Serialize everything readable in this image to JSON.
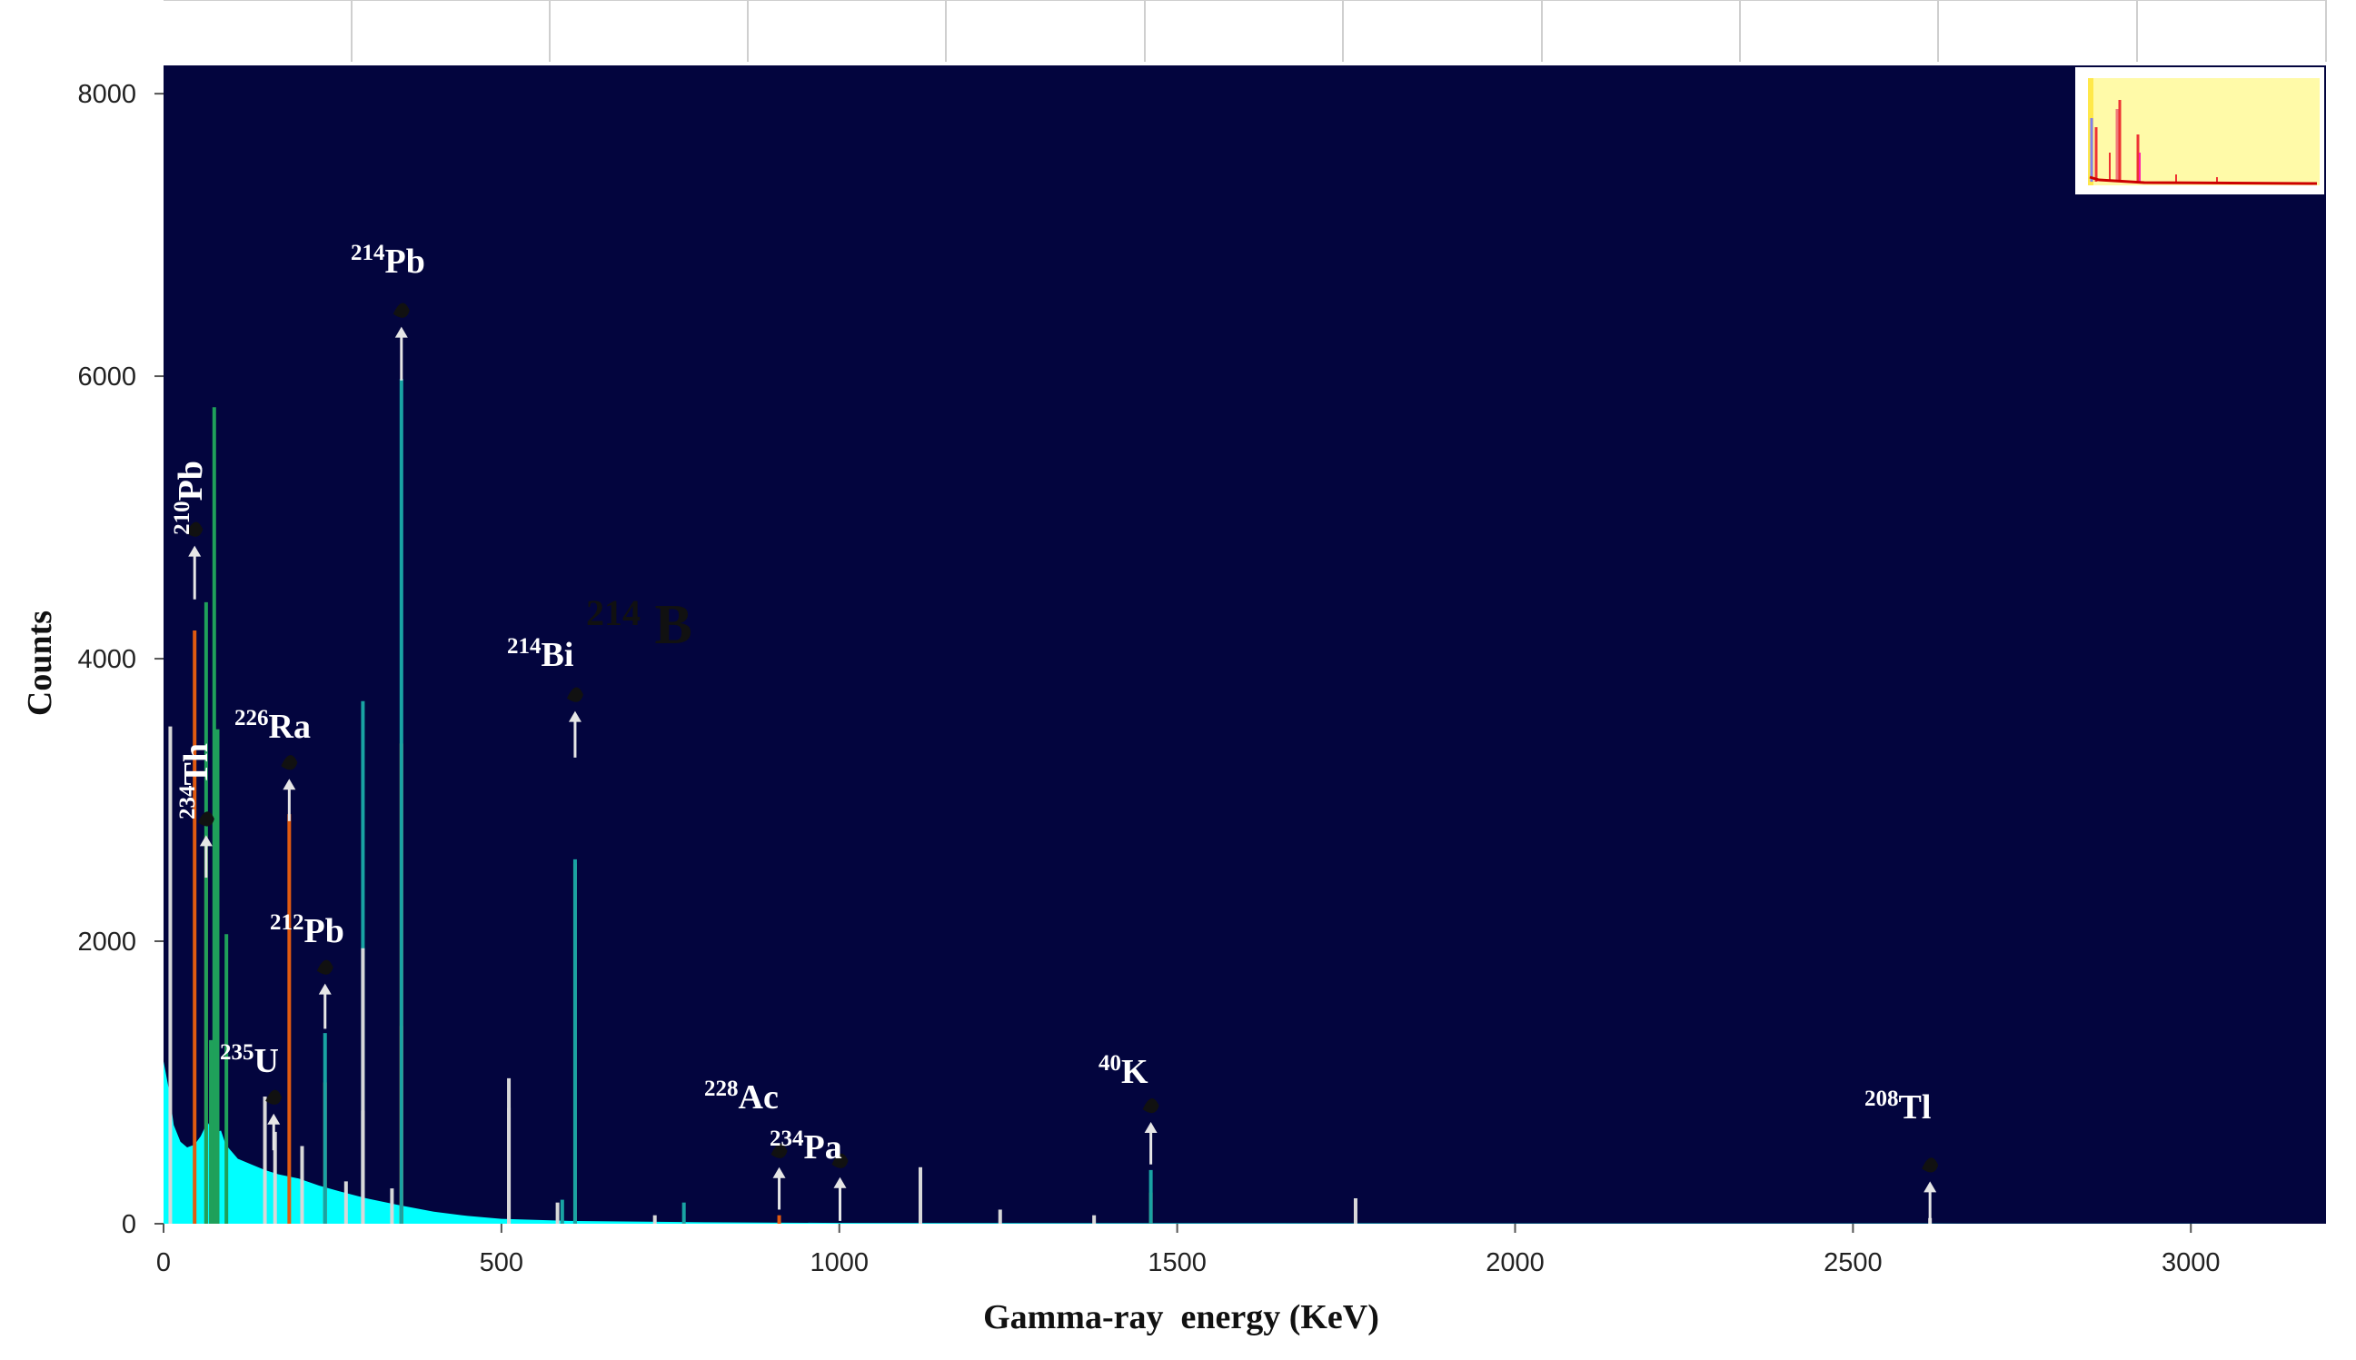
{
  "chart_data": {
    "type": "bar",
    "title": "",
    "xlabel": "Gamma-ray  energy (KeV)",
    "ylabel": "Counts",
    "xlim": [
      0,
      3200
    ],
    "ylim": [
      0,
      8200
    ],
    "x_ticks": [
      0,
      500,
      1000,
      1500,
      2000,
      2500,
      3000
    ],
    "y_ticks": [
      0,
      2000,
      4000,
      6000,
      8000
    ],
    "grid": false,
    "colors": {
      "plot_background": "#03053e",
      "continuum": "#00ffff",
      "inset_background": "#fffaa8"
    },
    "continuum": [
      [
        0,
        1150
      ],
      [
        8,
        950
      ],
      [
        15,
        700
      ],
      [
        25,
        580
      ],
      [
        35,
        540
      ],
      [
        46,
        560
      ],
      [
        55,
        620
      ],
      [
        65,
        720
      ],
      [
        75,
        640
      ],
      [
        85,
        660
      ],
      [
        92,
        560
      ],
      [
        110,
        460
      ],
      [
        130,
        420
      ],
      [
        150,
        380
      ],
      [
        170,
        350
      ],
      [
        200,
        320
      ],
      [
        230,
        270
      ],
      [
        260,
        230
      ],
      [
        300,
        180
      ],
      [
        350,
        130
      ],
      [
        400,
        85
      ],
      [
        450,
        55
      ],
      [
        500,
        35
      ],
      [
        600,
        20
      ],
      [
        800,
        10
      ],
      [
        1000,
        6
      ],
      [
        1500,
        3
      ],
      [
        2000,
        2
      ],
      [
        2600,
        1
      ],
      [
        3200,
        0
      ]
    ],
    "series": [
      {
        "name": "",
        "color": "#e05a10",
        "peaks": [
          [
            46,
            4200
          ],
          [
            63,
            2750
          ],
          [
            186,
            2900
          ],
          [
            239,
            1000
          ],
          [
            352,
            3400
          ],
          [
            352,
            1400
          ],
          [
            609,
            2550
          ],
          [
            911,
            60
          ],
          [
            1461,
            220
          ]
        ]
      },
      {
        "name": "",
        "color": "#1fa05a",
        "peaks": [
          [
            63,
            4400
          ],
          [
            75,
            5780
          ],
          [
            80,
            3500
          ],
          [
            93,
            2050
          ],
          [
            70,
            1300
          ]
        ]
      },
      {
        "name": "",
        "color": "#19a3a3",
        "peaks": [
          [
            352,
            5980
          ],
          [
            295,
            3700
          ],
          [
            609,
            2580
          ],
          [
            239,
            1350
          ],
          [
            1461,
            380
          ],
          [
            1120,
            200
          ],
          [
            590,
            170
          ],
          [
            770,
            150
          ]
        ]
      },
      {
        "name": "",
        "color": "#d8d8d8",
        "peaks": [
          [
            10,
            3520
          ],
          [
            295,
            1950
          ],
          [
            295,
            800
          ],
          [
            511,
            1030
          ],
          [
            511,
            820
          ],
          [
            150,
            900
          ],
          [
            165,
            650
          ],
          [
            205,
            550
          ],
          [
            270,
            300
          ],
          [
            338,
            250
          ],
          [
            1120,
            400
          ],
          [
            1238,
            100
          ],
          [
            1377,
            60
          ],
          [
            1764,
            180
          ],
          [
            583,
            150
          ],
          [
            727,
            60
          ],
          [
            2614,
            40
          ]
        ]
      }
    ],
    "annotations": [
      {
        "nuclide": "Pb",
        "mass": "214",
        "energy_keV": 352
      },
      {
        "nuclide": "Pb",
        "mass": "210",
        "energy_keV": 46
      },
      {
        "nuclide": "Bi",
        "mass": "214",
        "energy_keV": 609
      },
      {
        "nuclide": "Ra",
        "mass": "226",
        "energy_keV": 186
      },
      {
        "nuclide": "Th",
        "mass": "234",
        "energy_keV": 63
      },
      {
        "nuclide": "Pb",
        "mass": "212",
        "energy_keV": 239
      },
      {
        "nuclide": "U",
        "mass": "235",
        "energy_keV": 163
      },
      {
        "nuclide": "Ac",
        "mass": "228",
        "energy_keV": 911
      },
      {
        "nuclide": "Pa",
        "mass": "234",
        "energy_keV": 1001
      },
      {
        "nuclide": "K",
        "mass": "40",
        "energy_keV": 1461
      },
      {
        "nuclide": "Tl",
        "mass": "208",
        "energy_keV": 2614
      }
    ],
    "overlay_text": {
      "mass": "214",
      "symbol": "B"
    }
  }
}
